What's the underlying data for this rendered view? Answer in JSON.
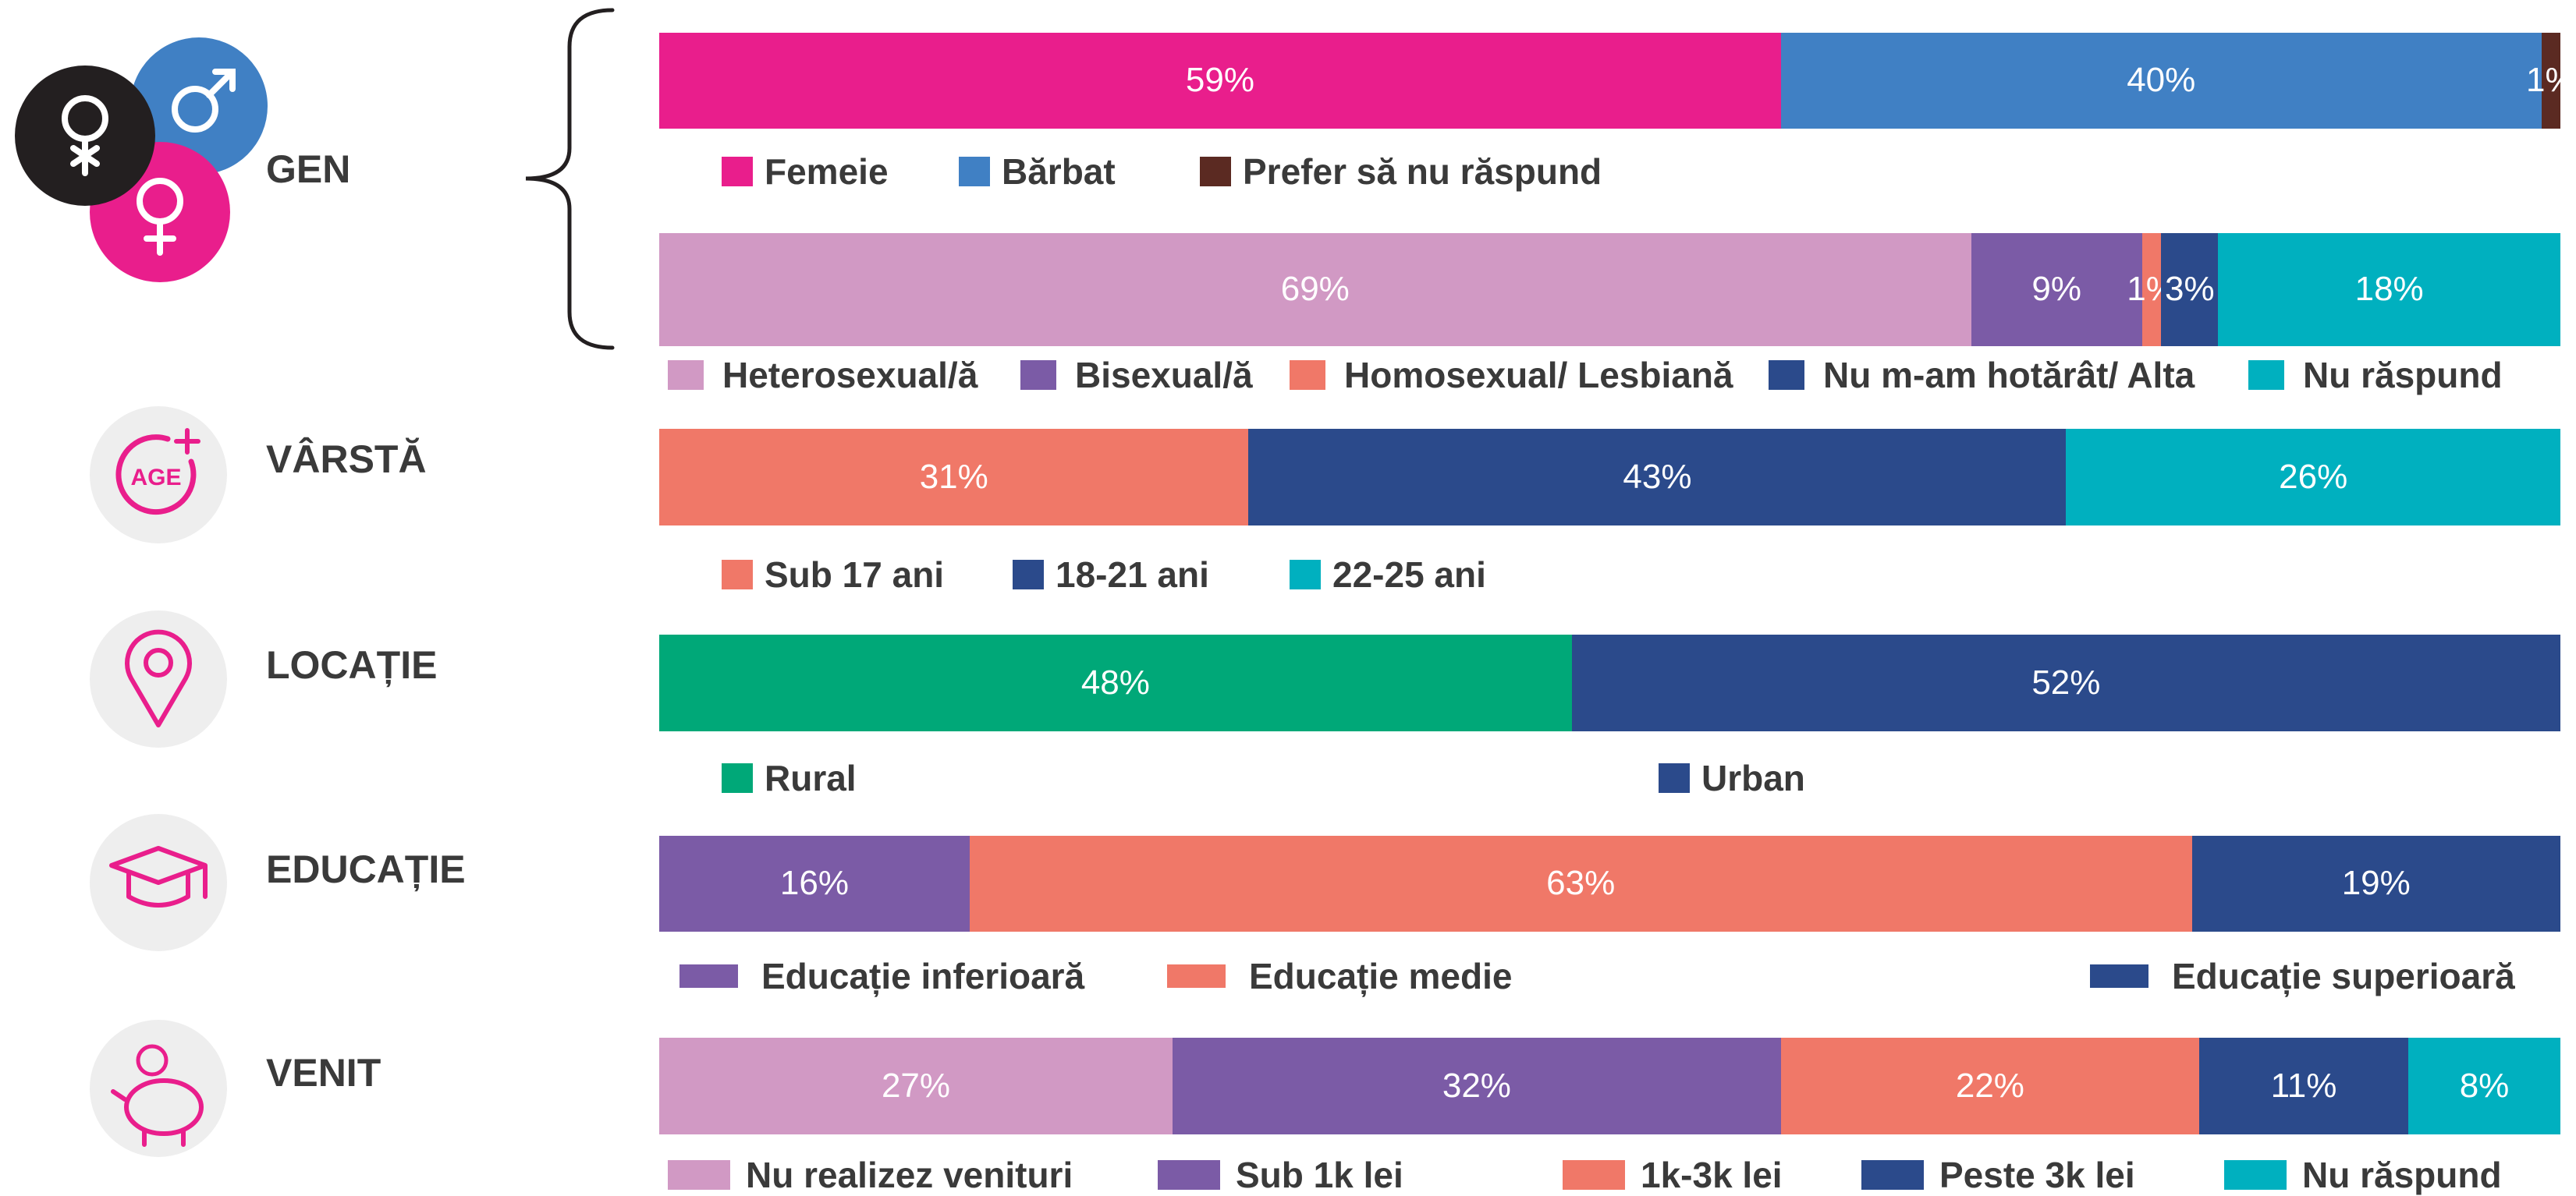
{
  "chart_data": [
    {
      "type": "stacked-bar",
      "title": "GEN",
      "xlim": [
        0,
        100
      ],
      "series": [
        {
          "name": "Femeie",
          "color": "#e91e8c",
          "values": [
            59
          ],
          "value_labels": [
            "59%"
          ]
        },
        {
          "name": "Bărbat",
          "color": "#4080c4",
          "values": [
            40
          ],
          "value_labels": [
            "40%"
          ]
        },
        {
          "name": "Prefer să nu răspund",
          "color": "#5b2a22",
          "values": [
            1
          ],
          "value_labels": [
            "1%"
          ]
        }
      ]
    },
    {
      "type": "stacked-bar",
      "xlim": [
        0,
        100
      ],
      "series": [
        {
          "name": "Heterosexual/ă",
          "color": "#d199c4",
          "values": [
            69
          ],
          "value_labels": [
            "69%"
          ]
        },
        {
          "name": "Bisexual/ă",
          "color": "#7b5ba6",
          "values": [
            9
          ],
          "value_labels": [
            "9%"
          ]
        },
        {
          "name": "Homosexual/ Lesbiană",
          "color": "#f07868",
          "values": [
            1
          ],
          "value_labels": [
            "1%"
          ]
        },
        {
          "name": "Nu m-am hotărât/ Alta",
          "color": "#2b4a8b",
          "values": [
            3
          ],
          "value_labels": [
            "3%"
          ]
        },
        {
          "name": "Nu răspund",
          "color": "#00b0bf",
          "values": [
            18
          ],
          "value_labels": [
            "18%"
          ]
        }
      ]
    },
    {
      "type": "stacked-bar",
      "title": "VÂRSTĂ",
      "xlim": [
        0,
        100
      ],
      "series": [
        {
          "name": "Sub 17 ani",
          "color": "#f07868",
          "values": [
            31
          ],
          "value_labels": [
            "31%"
          ]
        },
        {
          "name": "18-21 ani",
          "color": "#2b4a8b",
          "values": [
            43
          ],
          "value_labels": [
            "43%"
          ]
        },
        {
          "name": "22-25 ani",
          "color": "#00b0bf",
          "values": [
            26
          ],
          "value_labels": [
            "26%"
          ]
        }
      ]
    },
    {
      "type": "stacked-bar",
      "title": "LOCAȚIE",
      "xlim": [
        0,
        100
      ],
      "series": [
        {
          "name": "Rural",
          "color": "#00a878",
          "values": [
            48
          ],
          "value_labels": [
            "48%"
          ]
        },
        {
          "name": "Urban",
          "color": "#2b4a8b",
          "values": [
            52
          ],
          "value_labels": [
            "52%"
          ]
        }
      ]
    },
    {
      "type": "stacked-bar",
      "title": "EDUCAȚIE",
      "xlim": [
        0,
        98
      ],
      "series": [
        {
          "name": "Educație inferioară",
          "color": "#7b5ba6",
          "values": [
            16
          ],
          "value_labels": [
            "16%"
          ]
        },
        {
          "name": "Educație medie",
          "color": "#f07868",
          "values": [
            63
          ],
          "value_labels": [
            "63%"
          ]
        },
        {
          "name": "Educație superioară",
          "color": "#2b4a8b",
          "values": [
            19
          ],
          "value_labels": [
            "19%"
          ]
        }
      ]
    },
    {
      "type": "stacked-bar",
      "title": "VENIT",
      "xlim": [
        0,
        100
      ],
      "series": [
        {
          "name": "Nu realizez venituri",
          "color": "#d199c4",
          "values": [
            27
          ],
          "value_labels": [
            "27%"
          ]
        },
        {
          "name": "Sub 1k lei",
          "color": "#7b5ba6",
          "values": [
            32
          ],
          "value_labels": [
            "32%"
          ]
        },
        {
          "name": "1k-3k lei",
          "color": "#f07868",
          "values": [
            22
          ],
          "value_labels": [
            "22%"
          ]
        },
        {
          "name": "Peste 3k lei",
          "color": "#2b4a8b",
          "values": [
            11
          ],
          "value_labels": [
            "11%"
          ]
        },
        {
          "name": "Nu răspund",
          "color": "#00b0bf",
          "values": [
            8
          ],
          "value_labels": [
            "8%"
          ]
        }
      ]
    }
  ]
}
